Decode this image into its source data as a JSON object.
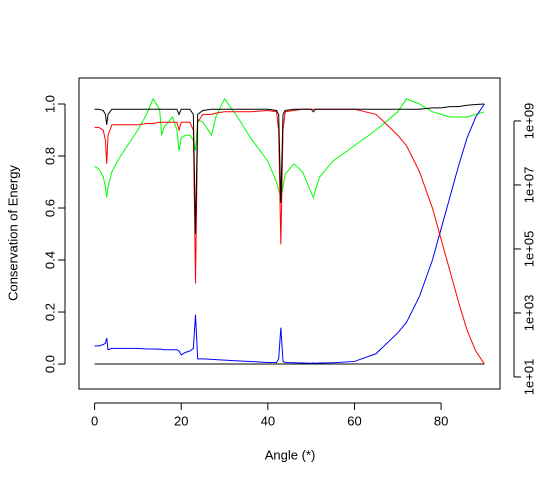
{
  "chart_data": {
    "type": "line",
    "x_label": "Angle (*)",
    "y_label": "Conservation of Energy",
    "x": [
      0,
      1,
      2,
      2.5,
      2.8,
      3.1,
      4,
      6,
      8,
      10,
      12,
      13.5,
      15,
      15.5,
      16,
      18,
      19,
      19.5,
      20,
      21,
      22,
      22.8,
      23.3,
      23.8,
      25,
      27,
      28,
      30,
      33,
      36,
      40,
      42,
      42.5,
      43,
      43.5,
      44,
      46,
      48,
      50,
      50.5,
      51,
      52,
      55,
      60,
      65,
      70,
      72,
      75,
      78,
      80,
      82,
      84,
      86,
      88,
      90
    ],
    "xlim": [
      -3.6,
      93.6
    ],
    "xticks": [
      0,
      20,
      40,
      60,
      80
    ],
    "ylim": [
      -0.096,
      1.1
    ],
    "yticks": [
      {
        "value": 0,
        "label": "0.0"
      },
      {
        "value": 0.2,
        "label": "0.2"
      },
      {
        "value": 0.4,
        "label": "0.4"
      },
      {
        "value": 0.6,
        "label": "0.6"
      },
      {
        "value": 0.8,
        "label": "0.8"
      },
      {
        "value": 1,
        "label": "1.0"
      }
    ],
    "y2log": true,
    "y2lim": [
      4.2,
      22000000000
    ],
    "y2ticks": [
      {
        "value": 10,
        "label": "1e+01"
      },
      {
        "value": 1000,
        "label": "1e+03"
      },
      {
        "value": 100000,
        "label": "1e+05"
      },
      {
        "value": 10000000,
        "label": "1e+07"
      },
      {
        "value": 1000000000,
        "label": "1e+09"
      }
    ],
    "series": [
      {
        "color": "#000000",
        "values": [
          0,
          0,
          0,
          0,
          0,
          0,
          0,
          0,
          0,
          0,
          0,
          0,
          0,
          0,
          0,
          0,
          0,
          0,
          0,
          0,
          0,
          0,
          0,
          0,
          0,
          0,
          0,
          0,
          0,
          0,
          0,
          0,
          0,
          0,
          0,
          0,
          0,
          0,
          0,
          0,
          0,
          0,
          0,
          0,
          0,
          0,
          0,
          0,
          0,
          0,
          0,
          0,
          0,
          0,
          0
        ]
      },
      {
        "color": "#00ff00",
        "values": [
          0.76,
          0.75,
          0.72,
          0.68,
          0.64,
          0.68,
          0.74,
          0.8,
          0.85,
          0.9,
          0.96,
          1.02,
          0.98,
          0.88,
          0.91,
          0.95,
          0.9,
          0.82,
          0.87,
          0.88,
          0.88,
          0.86,
          0.82,
          0.94,
          0.93,
          0.88,
          0.95,
          1.02,
          0.95,
          0.87,
          0.78,
          0.7,
          0.67,
          0.64,
          0.68,
          0.73,
          0.77,
          0.74,
          0.66,
          0.64,
          0.67,
          0.72,
          0.78,
          0.84,
          0.9,
          0.97,
          1.02,
          1.0,
          0.97,
          0.96,
          0.95,
          0.95,
          0.95,
          0.96,
          0.97
        ]
      },
      {
        "color": "#0000ff",
        "values": [
          0.07,
          0.07,
          0.075,
          0.08,
          0.1,
          0.055,
          0.06,
          0.06,
          0.06,
          0.06,
          0.058,
          0.058,
          0.057,
          0.057,
          0.055,
          0.055,
          0.055,
          0.05,
          0.035,
          0.045,
          0.05,
          0.06,
          0.19,
          0.02,
          0.02,
          0.018,
          0.017,
          0.015,
          0.012,
          0.01,
          0.006,
          0.006,
          0.02,
          0.14,
          0.01,
          0.006,
          0.005,
          0.004,
          0.003,
          0.004,
          0.003,
          0.004,
          0.005,
          0.01,
          0.04,
          0.12,
          0.16,
          0.26,
          0.4,
          0.52,
          0.64,
          0.76,
          0.87,
          0.95,
          1.0
        ]
      },
      {
        "color": "#ff0000",
        "values": [
          0.91,
          0.91,
          0.9,
          0.86,
          0.77,
          0.88,
          0.92,
          0.92,
          0.92,
          0.92,
          0.925,
          0.925,
          0.93,
          0.93,
          0.93,
          0.93,
          0.93,
          0.9,
          0.93,
          0.93,
          0.93,
          0.9,
          0.31,
          0.93,
          0.96,
          0.96,
          0.965,
          0.97,
          0.97,
          0.97,
          0.975,
          0.97,
          0.9,
          0.46,
          0.9,
          0.97,
          0.975,
          0.98,
          0.98,
          0.98,
          0.98,
          0.98,
          0.98,
          0.98,
          0.96,
          0.88,
          0.84,
          0.74,
          0.6,
          0.48,
          0.36,
          0.24,
          0.13,
          0.05,
          0.0
        ]
      },
      {
        "color": "#000000",
        "values": [
          0.98,
          0.98,
          0.975,
          0.96,
          0.92,
          0.96,
          0.98,
          0.98,
          0.98,
          0.98,
          0.98,
          0.98,
          0.98,
          0.98,
          0.98,
          0.98,
          0.98,
          0.96,
          0.98,
          0.98,
          0.98,
          0.96,
          0.5,
          0.96,
          0.975,
          0.98,
          0.98,
          0.98,
          0.98,
          0.98,
          0.98,
          0.975,
          0.96,
          0.62,
          0.96,
          0.975,
          0.98,
          0.98,
          0.98,
          0.97,
          0.98,
          0.98,
          0.98,
          0.98,
          0.98,
          0.98,
          0.98,
          0.98,
          0.985,
          0.985,
          0.99,
          0.99,
          0.995,
          0.998,
          1.0
        ]
      }
    ]
  }
}
